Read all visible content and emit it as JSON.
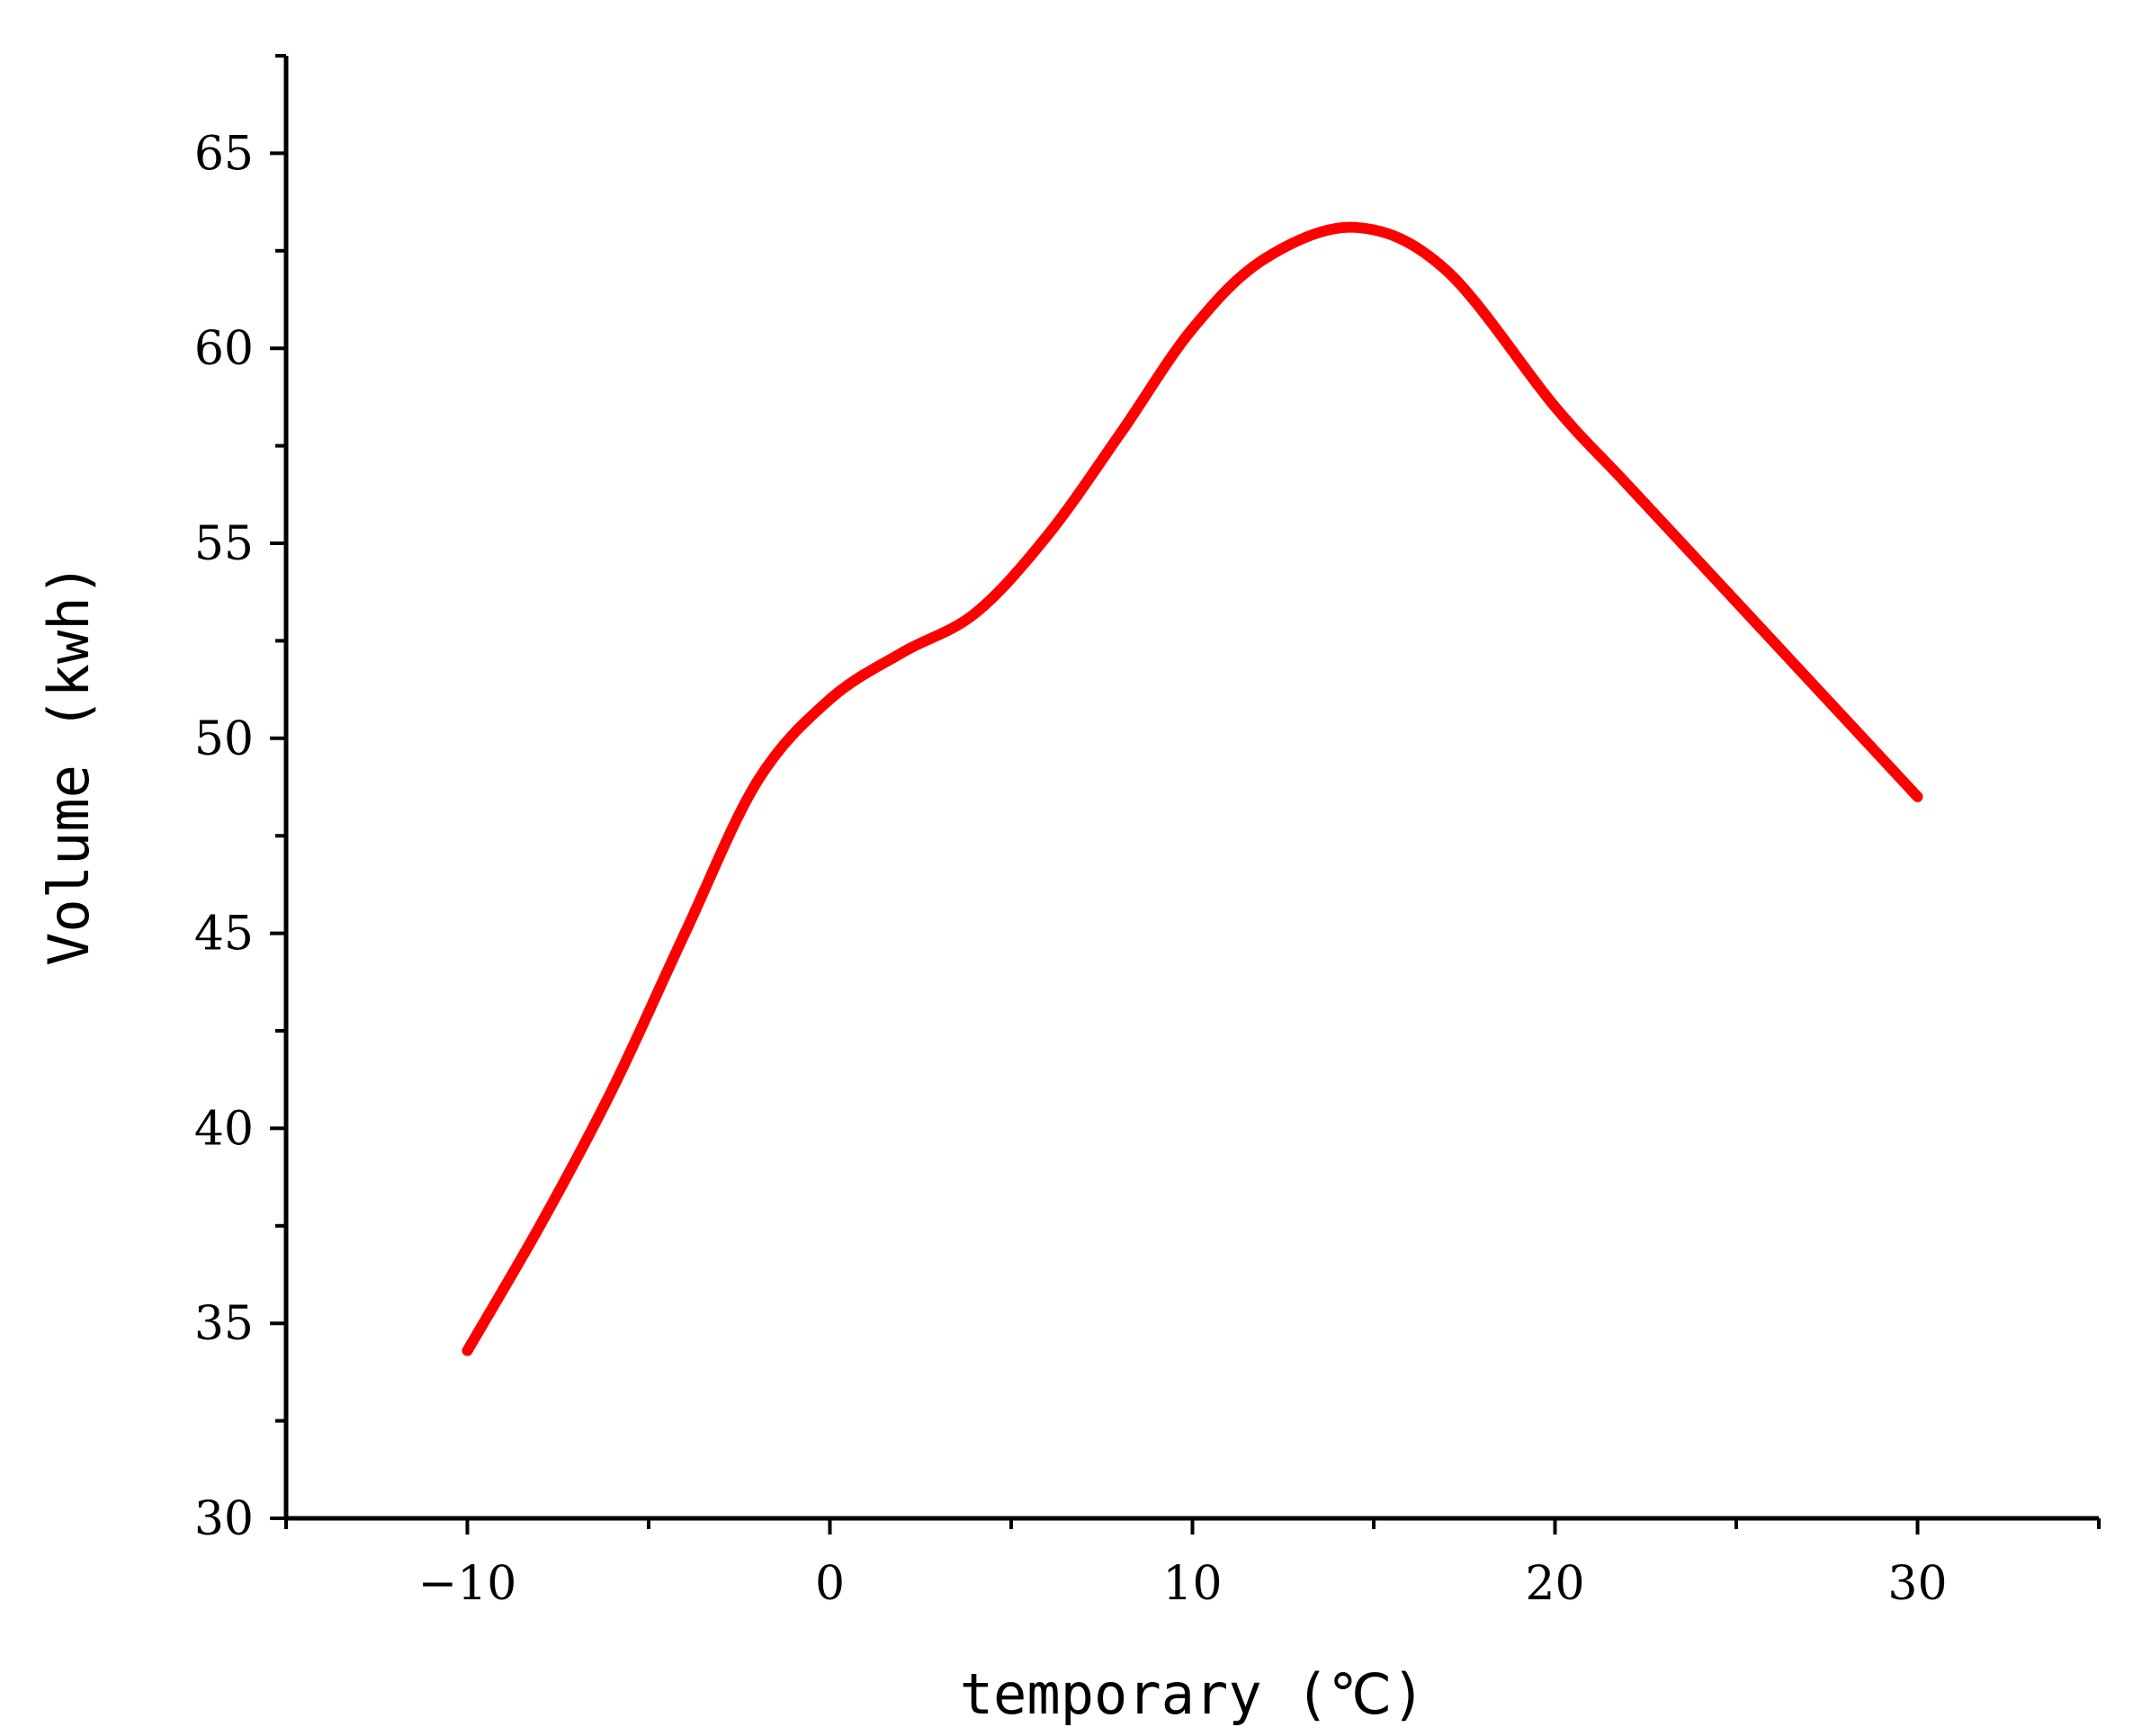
{
  "chart_data": {
    "type": "line",
    "title": "",
    "xlabel": "temporary (℃)",
    "ylabel": "Volume (kwh)",
    "xlim": [
      -15,
      35
    ],
    "ylim": [
      30,
      67.5
    ],
    "x_ticks": [
      -10,
      0,
      10,
      20,
      30
    ],
    "y_ticks": [
      30,
      35,
      40,
      45,
      50,
      55,
      60,
      65
    ],
    "x_tick_labels": [
      "−10",
      "0",
      "10",
      "20",
      "30"
    ],
    "y_tick_labels": [
      "30",
      "35",
      "40",
      "45",
      "50",
      "55",
      "60",
      "65"
    ],
    "grid": false,
    "legend": "none",
    "series": [
      {
        "color": "#ff0000",
        "x": [
          -10,
          -8,
          -6,
          -4,
          -2,
          0,
          2,
          4,
          6,
          8,
          10,
          12,
          14.5,
          17,
          20,
          22,
          25,
          28,
          30
        ],
        "y": [
          34.3,
          37.5,
          41.0,
          45.0,
          48.9,
          51.0,
          52.2,
          53.2,
          55.2,
          57.8,
          60.5,
          62.3,
          63.1,
          62.0,
          58.5,
          56.5,
          53.5,
          50.5,
          48.5
        ]
      }
    ]
  }
}
